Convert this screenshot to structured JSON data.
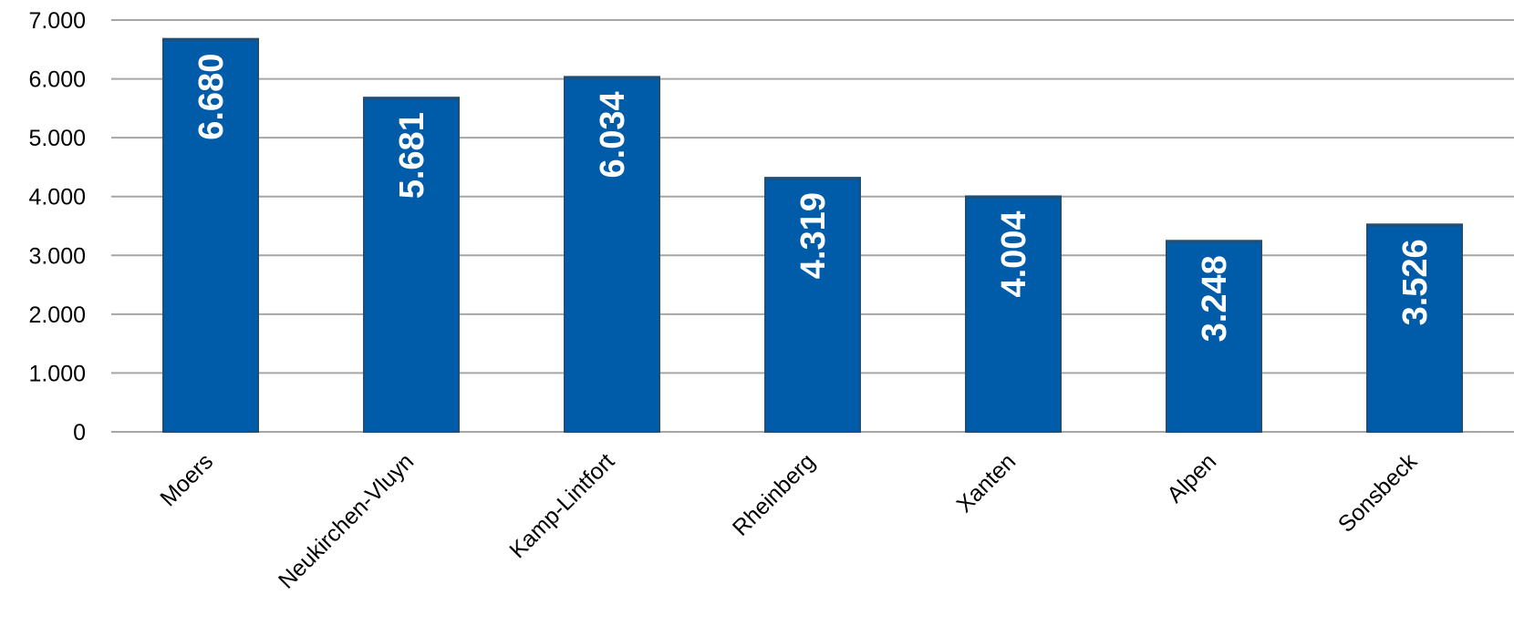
{
  "chart_data": {
    "type": "bar",
    "categories": [
      "Moers",
      "Neukirchen-Vluyn",
      "Kamp-Lintfort",
      "Rheinberg",
      "Xanten",
      "Alpen",
      "Sonsbeck"
    ],
    "values": [
      6680,
      5681,
      6034,
      4319,
      4004,
      3248,
      3526
    ],
    "data_labels": [
      "6.680",
      "5.681",
      "6.034",
      "4.319",
      "4.004",
      "3.248",
      "3.526"
    ],
    "y_ticks": [
      0,
      1000,
      2000,
      3000,
      4000,
      5000,
      6000,
      7000
    ],
    "y_tick_labels": [
      "0",
      "1.000",
      "2.000",
      "3.000",
      "4.000",
      "5.000",
      "6.000",
      "7.000"
    ],
    "ylim": [
      0,
      7000
    ],
    "title": "",
    "xlabel": "",
    "ylabel": "",
    "grid": true,
    "legend": "none",
    "bar_color": "#005ca9",
    "bar_top_color": "#1f4e79"
  }
}
